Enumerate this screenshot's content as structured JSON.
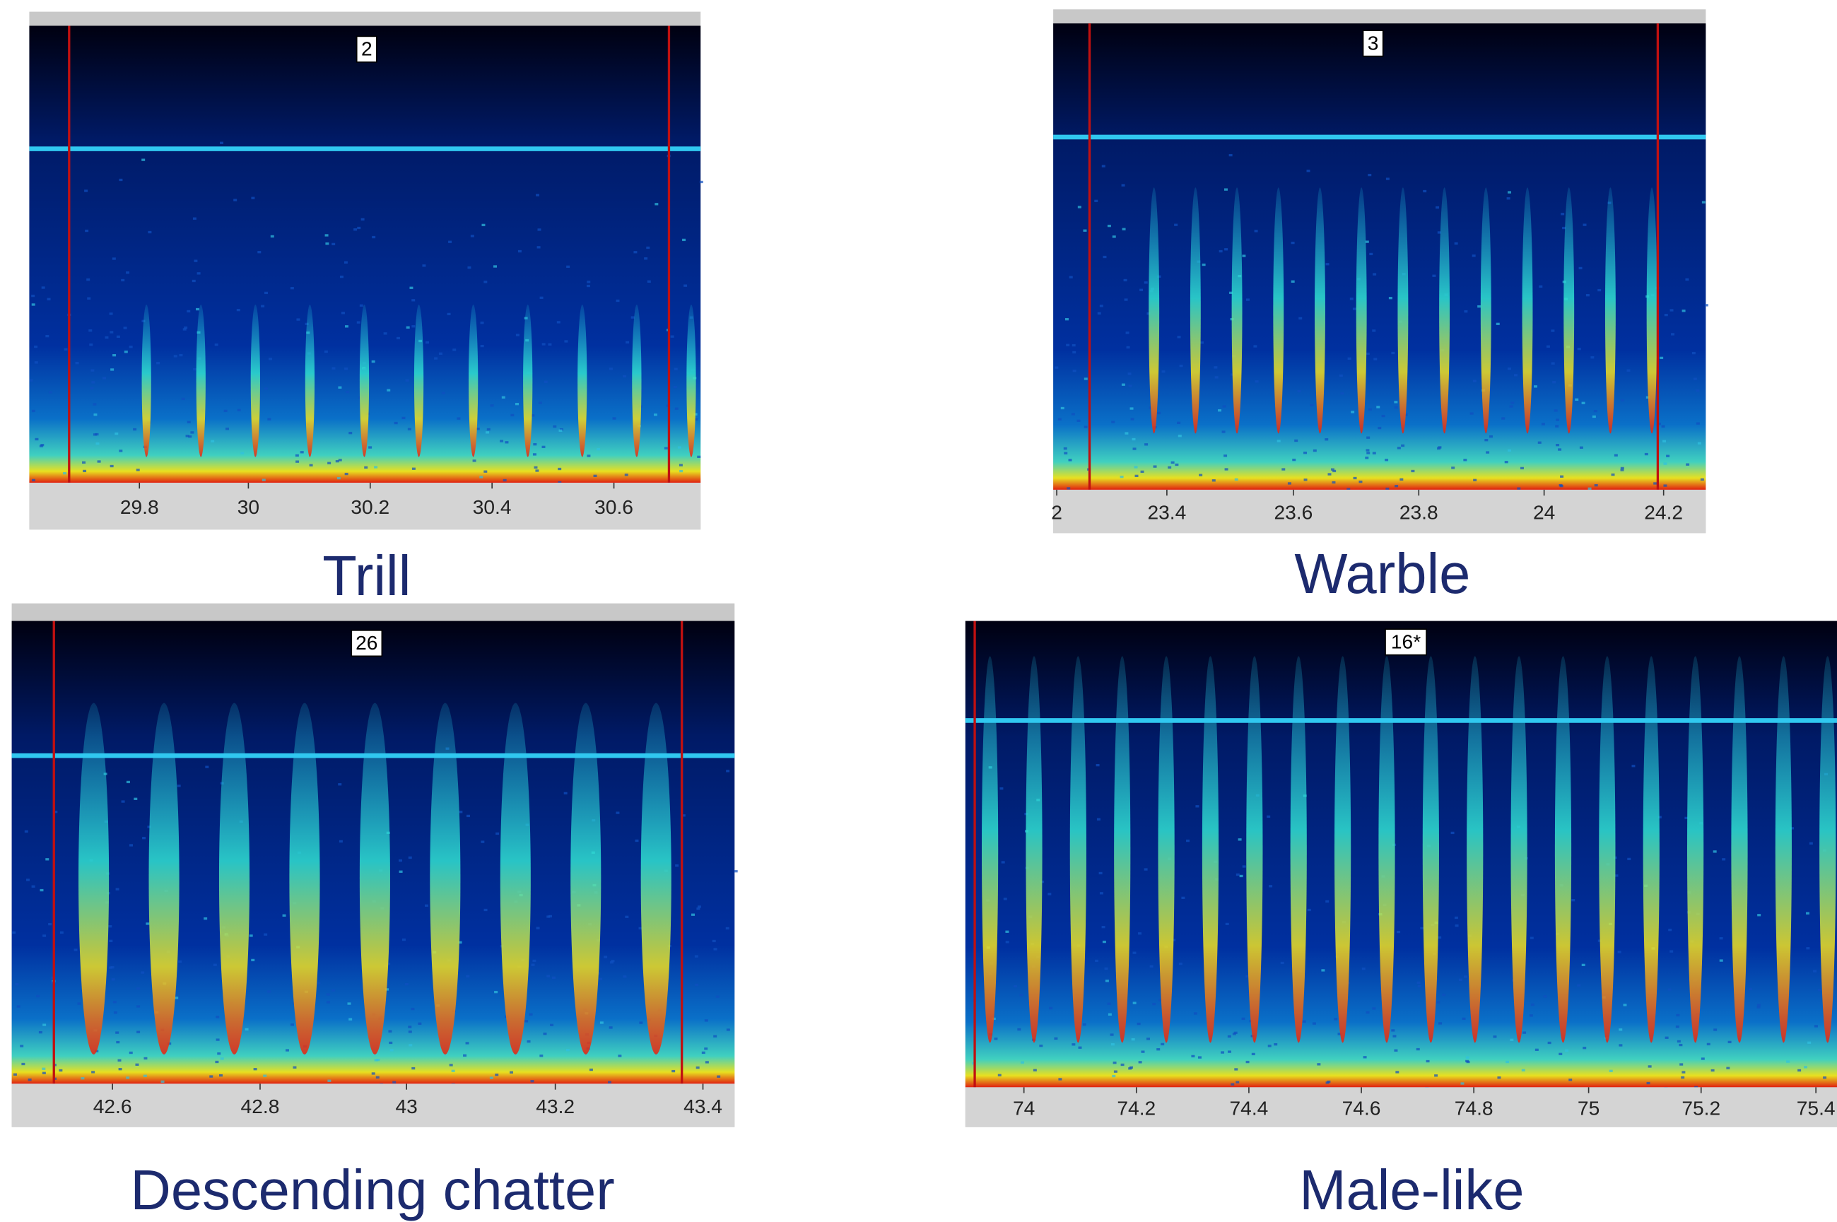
{
  "panels": [
    {
      "label": "2",
      "caption": "Trill",
      "ticks": [
        "29.8",
        "30",
        "30.2",
        "30.4",
        "30.6"
      ]
    },
    {
      "label": "3",
      "caption": "Warble",
      "ticks": [
        "2",
        "23.4",
        "23.6",
        "23.8",
        "24",
        "24.2"
      ]
    },
    {
      "label": "26",
      "caption": "Descending chatter",
      "ticks": [
        "42.6",
        "42.8",
        "43",
        "43.2",
        "43.4"
      ]
    },
    {
      "label": "16*",
      "caption": "Male-like",
      "ticks": [
        "74",
        "74.2",
        "74.4",
        "74.6",
        "74.8",
        "75",
        "75.2",
        "75.4"
      ]
    }
  ]
}
